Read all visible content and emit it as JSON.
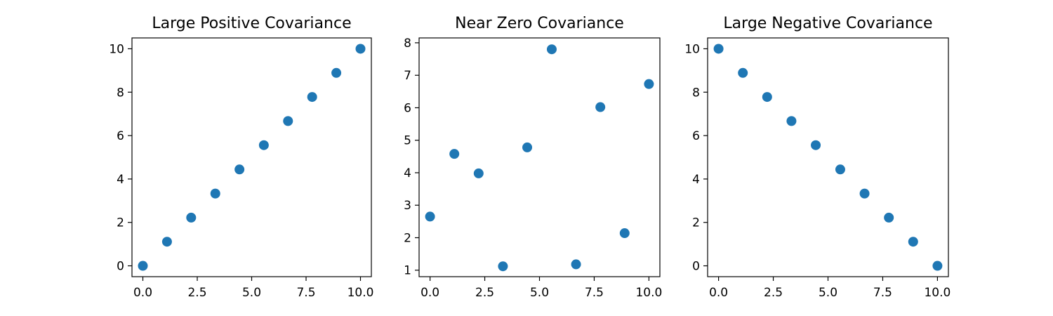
{
  "colors": {
    "marker": "#1f77b4",
    "axes": "#000000",
    "background": "#ffffff"
  },
  "chart_data": [
    {
      "type": "scatter",
      "title": "Large Positive Covariance",
      "xlabel": "",
      "ylabel": "",
      "xlim": [
        -0.5,
        10.5
      ],
      "ylim": [
        -0.5,
        10.5
      ],
      "xticks": [
        "0.0",
        "2.5",
        "5.0",
        "7.5",
        "10.0"
      ],
      "yticks": [
        "0",
        "2",
        "4",
        "6",
        "8",
        "10"
      ],
      "grid": false,
      "x": [
        0.0,
        1.11,
        2.22,
        3.33,
        4.44,
        5.56,
        6.67,
        7.78,
        8.89,
        10.0
      ],
      "y": [
        0.0,
        1.11,
        2.22,
        3.33,
        4.44,
        5.56,
        6.67,
        7.78,
        8.89,
        10.0
      ]
    },
    {
      "type": "scatter",
      "title": "Near Zero Covariance",
      "xlabel": "",
      "ylabel": "",
      "xlim": [
        -0.5,
        10.5
      ],
      "ylim": [
        0.8,
        8.15
      ],
      "xticks": [
        "0.0",
        "2.5",
        "5.0",
        "7.5",
        "10.0"
      ],
      "yticks": [
        "1",
        "2",
        "3",
        "4",
        "5",
        "6",
        "7",
        "8"
      ],
      "grid": false,
      "x": [
        0.0,
        1.11,
        2.22,
        3.33,
        4.44,
        5.56,
        6.67,
        7.78,
        8.89,
        10.0
      ],
      "y": [
        2.65,
        4.58,
        3.98,
        1.12,
        4.78,
        7.8,
        1.18,
        6.02,
        2.14,
        6.73
      ]
    },
    {
      "type": "scatter",
      "title": "Large Negative Covariance",
      "xlabel": "",
      "ylabel": "",
      "xlim": [
        -0.5,
        10.5
      ],
      "ylim": [
        -0.5,
        10.5
      ],
      "xticks": [
        "0.0",
        "2.5",
        "5.0",
        "7.5",
        "10.0"
      ],
      "yticks": [
        "0",
        "2",
        "4",
        "6",
        "8",
        "10"
      ],
      "grid": false,
      "x": [
        0.0,
        1.11,
        2.22,
        3.33,
        4.44,
        5.56,
        6.67,
        7.78,
        8.89,
        10.0
      ],
      "y": [
        10.0,
        8.89,
        7.78,
        6.67,
        5.56,
        4.44,
        3.33,
        2.22,
        1.11,
        0.0
      ]
    }
  ]
}
